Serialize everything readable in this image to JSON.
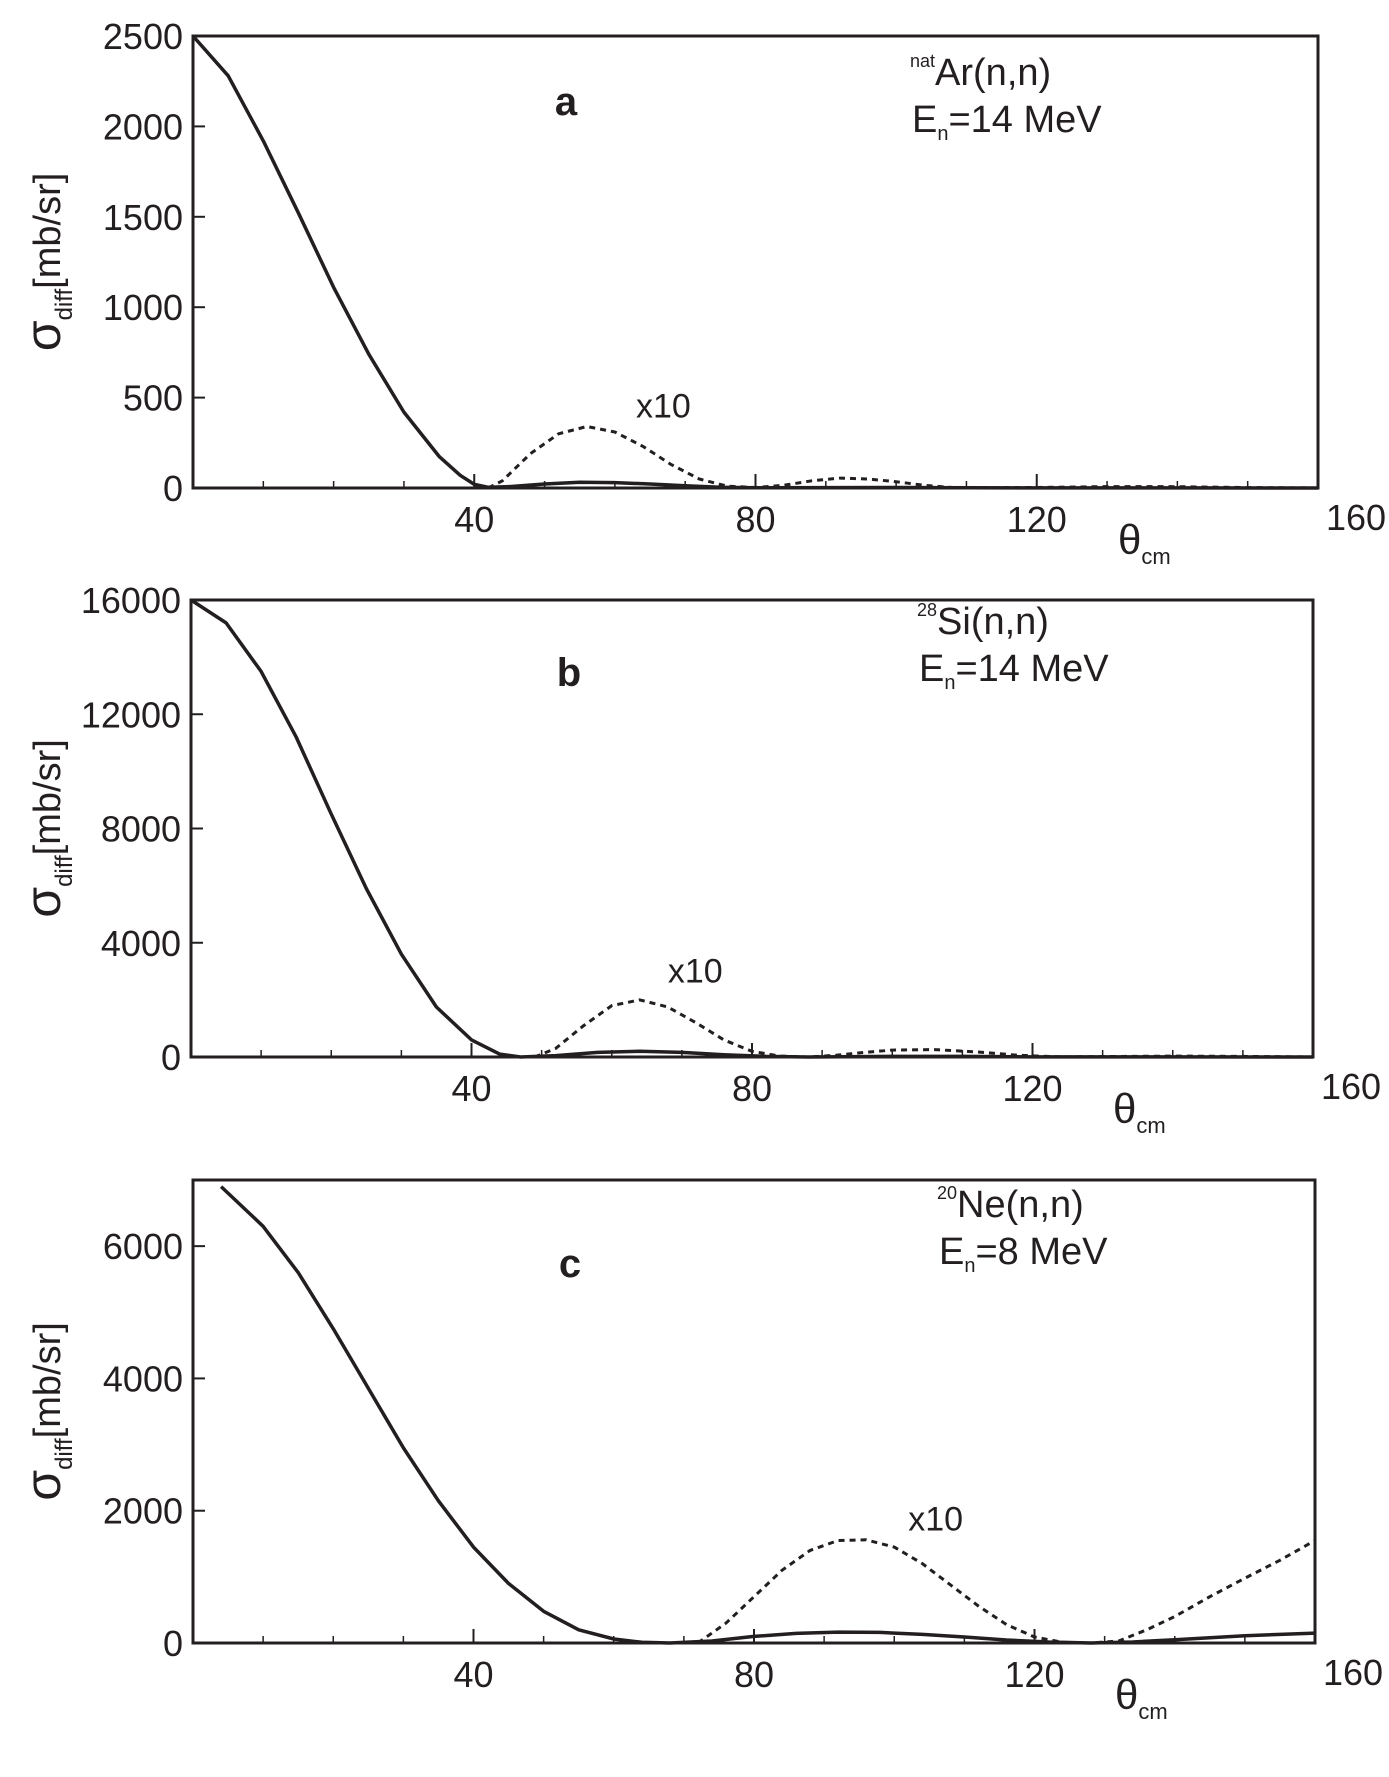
{
  "chart_data": [
    {
      "type": "line",
      "panel_label": "a",
      "annotation": {
        "sup": "nat",
        "reaction": "Ar(n,n)",
        "energy_prefix": "E",
        "energy_sub": "n",
        "energy_value": "=14 MeV"
      },
      "ylabel": {
        "symbol": "σ",
        "sub": "diff",
        "unit": "[mb/sr]"
      },
      "xlabel": {
        "symbol": "θ",
        "sub": "cm"
      },
      "xlim": [
        0,
        160
      ],
      "ylim": [
        0,
        2500
      ],
      "xticks": [
        "40",
        "80",
        "120",
        "160"
      ],
      "yticks": [
        "0",
        "500",
        "1000",
        "1500",
        "2000",
        "2500"
      ],
      "multiplier_label": "x10",
      "multiplier_label_at": [
        63,
        390
      ],
      "series": [
        {
          "style": "solid",
          "points": [
            [
              0,
              2500
            ],
            [
              5,
              2280
            ],
            [
              10,
              1920
            ],
            [
              15,
              1520
            ],
            [
              20,
              1110
            ],
            [
              25,
              740
            ],
            [
              30,
              420
            ],
            [
              35,
              175
            ],
            [
              38,
              70
            ],
            [
              40,
              20
            ],
            [
              42,
              4
            ],
            [
              45,
              8
            ],
            [
              50,
              22
            ],
            [
              55,
              32
            ],
            [
              60,
              30
            ],
            [
              65,
              22
            ],
            [
              70,
              12
            ],
            [
              75,
              4
            ],
            [
              80,
              1
            ],
            [
              90,
              2
            ],
            [
              100,
              3
            ],
            [
              110,
              1
            ],
            [
              120,
              0.5
            ],
            [
              140,
              0.3
            ],
            [
              160,
              0.2
            ]
          ]
        },
        {
          "style": "dotted",
          "points": [
            [
              42,
              0
            ],
            [
              44,
              40
            ],
            [
              48,
              190
            ],
            [
              52,
              300
            ],
            [
              56,
              340
            ],
            [
              60,
              310
            ],
            [
              64,
              230
            ],
            [
              68,
              130
            ],
            [
              72,
              50
            ],
            [
              76,
              10
            ],
            [
              80,
              3
            ],
            [
              84,
              15
            ],
            [
              88,
              40
            ],
            [
              92,
              55
            ],
            [
              96,
              50
            ],
            [
              100,
              35
            ],
            [
              104,
              15
            ],
            [
              108,
              3
            ],
            [
              112,
              1
            ],
            [
              120,
              3
            ],
            [
              130,
              8
            ],
            [
              140,
              7
            ],
            [
              150,
              2
            ],
            [
              160,
              0
            ]
          ]
        }
      ]
    },
    {
      "type": "line",
      "panel_label": "b",
      "annotation": {
        "sup": "28",
        "reaction": "Si(n,n)",
        "energy_prefix": "E",
        "energy_sub": "n",
        "energy_value": "=14 MeV"
      },
      "ylabel": {
        "symbol": "σ",
        "sub": "diff",
        "unit": "[mb/sr]"
      },
      "xlabel": {
        "symbol": "θ",
        "sub": "cm"
      },
      "xlim": [
        0,
        160
      ],
      "ylim": [
        0,
        16000
      ],
      "xticks": [
        "40",
        "80",
        "120",
        "160"
      ],
      "yticks": [
        "0",
        "4000",
        "8000",
        "12000",
        "16000"
      ],
      "multiplier_label": "x10",
      "multiplier_label_at": [
        68,
        2600
      ],
      "series": [
        {
          "style": "solid",
          "points": [
            [
              0,
              16000
            ],
            [
              5,
              15200
            ],
            [
              10,
              13500
            ],
            [
              15,
              11200
            ],
            [
              20,
              8500
            ],
            [
              25,
              5900
            ],
            [
              30,
              3600
            ],
            [
              35,
              1750
            ],
            [
              40,
              600
            ],
            [
              44,
              100
            ],
            [
              47,
              0
            ],
            [
              52,
              50
            ],
            [
              58,
              160
            ],
            [
              64,
              200
            ],
            [
              70,
              160
            ],
            [
              76,
              80
            ],
            [
              82,
              20
            ],
            [
              88,
              0
            ],
            [
              100,
              20
            ],
            [
              110,
              20
            ],
            [
              120,
              5
            ],
            [
              140,
              2
            ],
            [
              160,
              0
            ]
          ]
        },
        {
          "style": "dotted",
          "points": [
            [
              49,
              0
            ],
            [
              52,
              300
            ],
            [
              56,
              1100
            ],
            [
              60,
              1800
            ],
            [
              64,
              2000
            ],
            [
              68,
              1750
            ],
            [
              72,
              1200
            ],
            [
              76,
              600
            ],
            [
              80,
              200
            ],
            [
              84,
              30
            ],
            [
              88,
              0
            ],
            [
              92,
              60
            ],
            [
              96,
              160
            ],
            [
              100,
              240
            ],
            [
              106,
              260
            ],
            [
              112,
              180
            ],
            [
              118,
              60
            ],
            [
              124,
              5
            ],
            [
              130,
              15
            ],
            [
              140,
              30
            ],
            [
              150,
              20
            ],
            [
              160,
              0
            ]
          ]
        }
      ]
    },
    {
      "type": "line",
      "panel_label": "c",
      "annotation": {
        "sup": "20",
        "reaction": "Ne(n,n)",
        "energy_prefix": "E",
        "energy_sub": "n",
        "energy_value": "=8 MeV"
      },
      "ylabel": {
        "symbol": "σ",
        "sub": "diff",
        "unit": "[mb/sr]"
      },
      "xlabel": {
        "symbol": "θ",
        "sub": "cm"
      },
      "xlim": [
        0,
        160
      ],
      "ylim": [
        0,
        7000
      ],
      "xticks": [
        "40",
        "80",
        "120",
        "160"
      ],
      "yticks": [
        "0",
        "2000",
        "4000",
        "6000"
      ],
      "multiplier_label": "x10",
      "multiplier_label_at": [
        102,
        1700
      ],
      "series": [
        {
          "style": "solid",
          "points": [
            [
              4,
              6900
            ],
            [
              10,
              6300
            ],
            [
              15,
              5600
            ],
            [
              20,
              4750
            ],
            [
              25,
              3850
            ],
            [
              30,
              2950
            ],
            [
              35,
              2150
            ],
            [
              40,
              1450
            ],
            [
              45,
              900
            ],
            [
              50,
              480
            ],
            [
              55,
              200
            ],
            [
              60,
              60
            ],
            [
              64,
              10
            ],
            [
              68,
              0
            ],
            [
              74,
              30
            ],
            [
              80,
              100
            ],
            [
              86,
              145
            ],
            [
              92,
              165
            ],
            [
              98,
              160
            ],
            [
              104,
              130
            ],
            [
              110,
              90
            ],
            [
              116,
              45
            ],
            [
              122,
              15
            ],
            [
              128,
              0
            ],
            [
              134,
              15
            ],
            [
              140,
              50
            ],
            [
              150,
              110
            ],
            [
              160,
              150
            ]
          ]
        },
        {
          "style": "dotted",
          "points": [
            [
              72,
              0
            ],
            [
              76,
              300
            ],
            [
              80,
              700
            ],
            [
              84,
              1100
            ],
            [
              88,
              1400
            ],
            [
              92,
              1550
            ],
            [
              96,
              1560
            ],
            [
              100,
              1450
            ],
            [
              104,
              1200
            ],
            [
              108,
              880
            ],
            [
              112,
              560
            ],
            [
              116,
              280
            ],
            [
              120,
              90
            ],
            [
              124,
              10
            ],
            [
              128,
              0
            ],
            [
              132,
              30
            ],
            [
              136,
              200
            ],
            [
              140,
              400
            ],
            [
              145,
              700
            ],
            [
              150,
              980
            ],
            [
              155,
              1250
            ],
            [
              160,
              1550
            ]
          ]
        }
      ]
    }
  ]
}
